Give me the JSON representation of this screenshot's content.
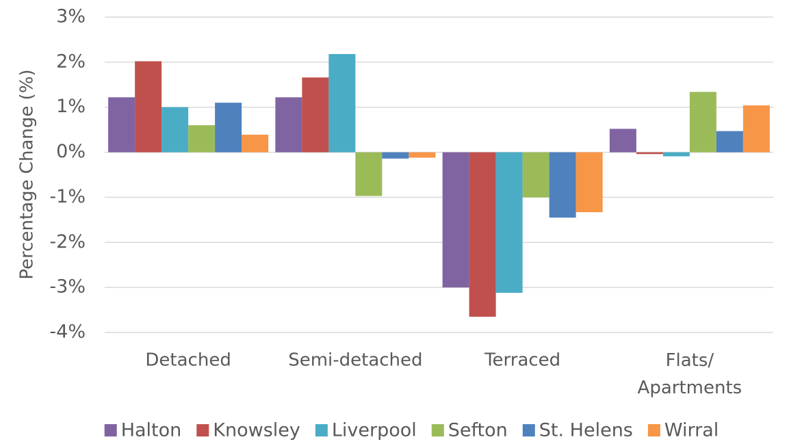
{
  "chart_data": {
    "type": "bar",
    "y_label": "Percentage Change (%)",
    "categories": [
      "Detached",
      "Semi-detached",
      "Terraced",
      "Flats/ Apartments"
    ],
    "series": [
      {
        "name": "Halton",
        "color": "#8064a2",
        "values": [
          1.22,
          1.22,
          -3.0,
          0.52
        ]
      },
      {
        "name": "Knowsley",
        "color": "#c0504d",
        "values": [
          2.02,
          1.66,
          -3.65,
          -0.04
        ]
      },
      {
        "name": "Liverpool",
        "color": "#4bacc6",
        "values": [
          1.0,
          2.18,
          -3.12,
          -0.09
        ]
      },
      {
        "name": "Sefton",
        "color": "#9bbb59",
        "values": [
          0.6,
          -0.97,
          -1.0,
          1.34
        ]
      },
      {
        "name": "St. Helens",
        "color": "#4f81bd",
        "values": [
          1.1,
          -0.14,
          -1.45,
          0.47
        ]
      },
      {
        "name": "Wirral",
        "color": "#f79646",
        "values": [
          0.39,
          -0.12,
          -1.33,
          1.04
        ]
      }
    ],
    "ylim": [
      -4,
      3
    ],
    "yticks": [
      {
        "value": -4,
        "label": "-4%"
      },
      {
        "value": -3,
        "label": "-3%"
      },
      {
        "value": -2,
        "label": "-2%"
      },
      {
        "value": -1,
        "label": "-1%"
      },
      {
        "value": 0,
        "label": "0%"
      },
      {
        "value": 1,
        "label": "1%"
      },
      {
        "value": 2,
        "label": "2%"
      },
      {
        "value": 3,
        "label": "3%"
      }
    ],
    "grid": true,
    "legend": "bottom"
  }
}
